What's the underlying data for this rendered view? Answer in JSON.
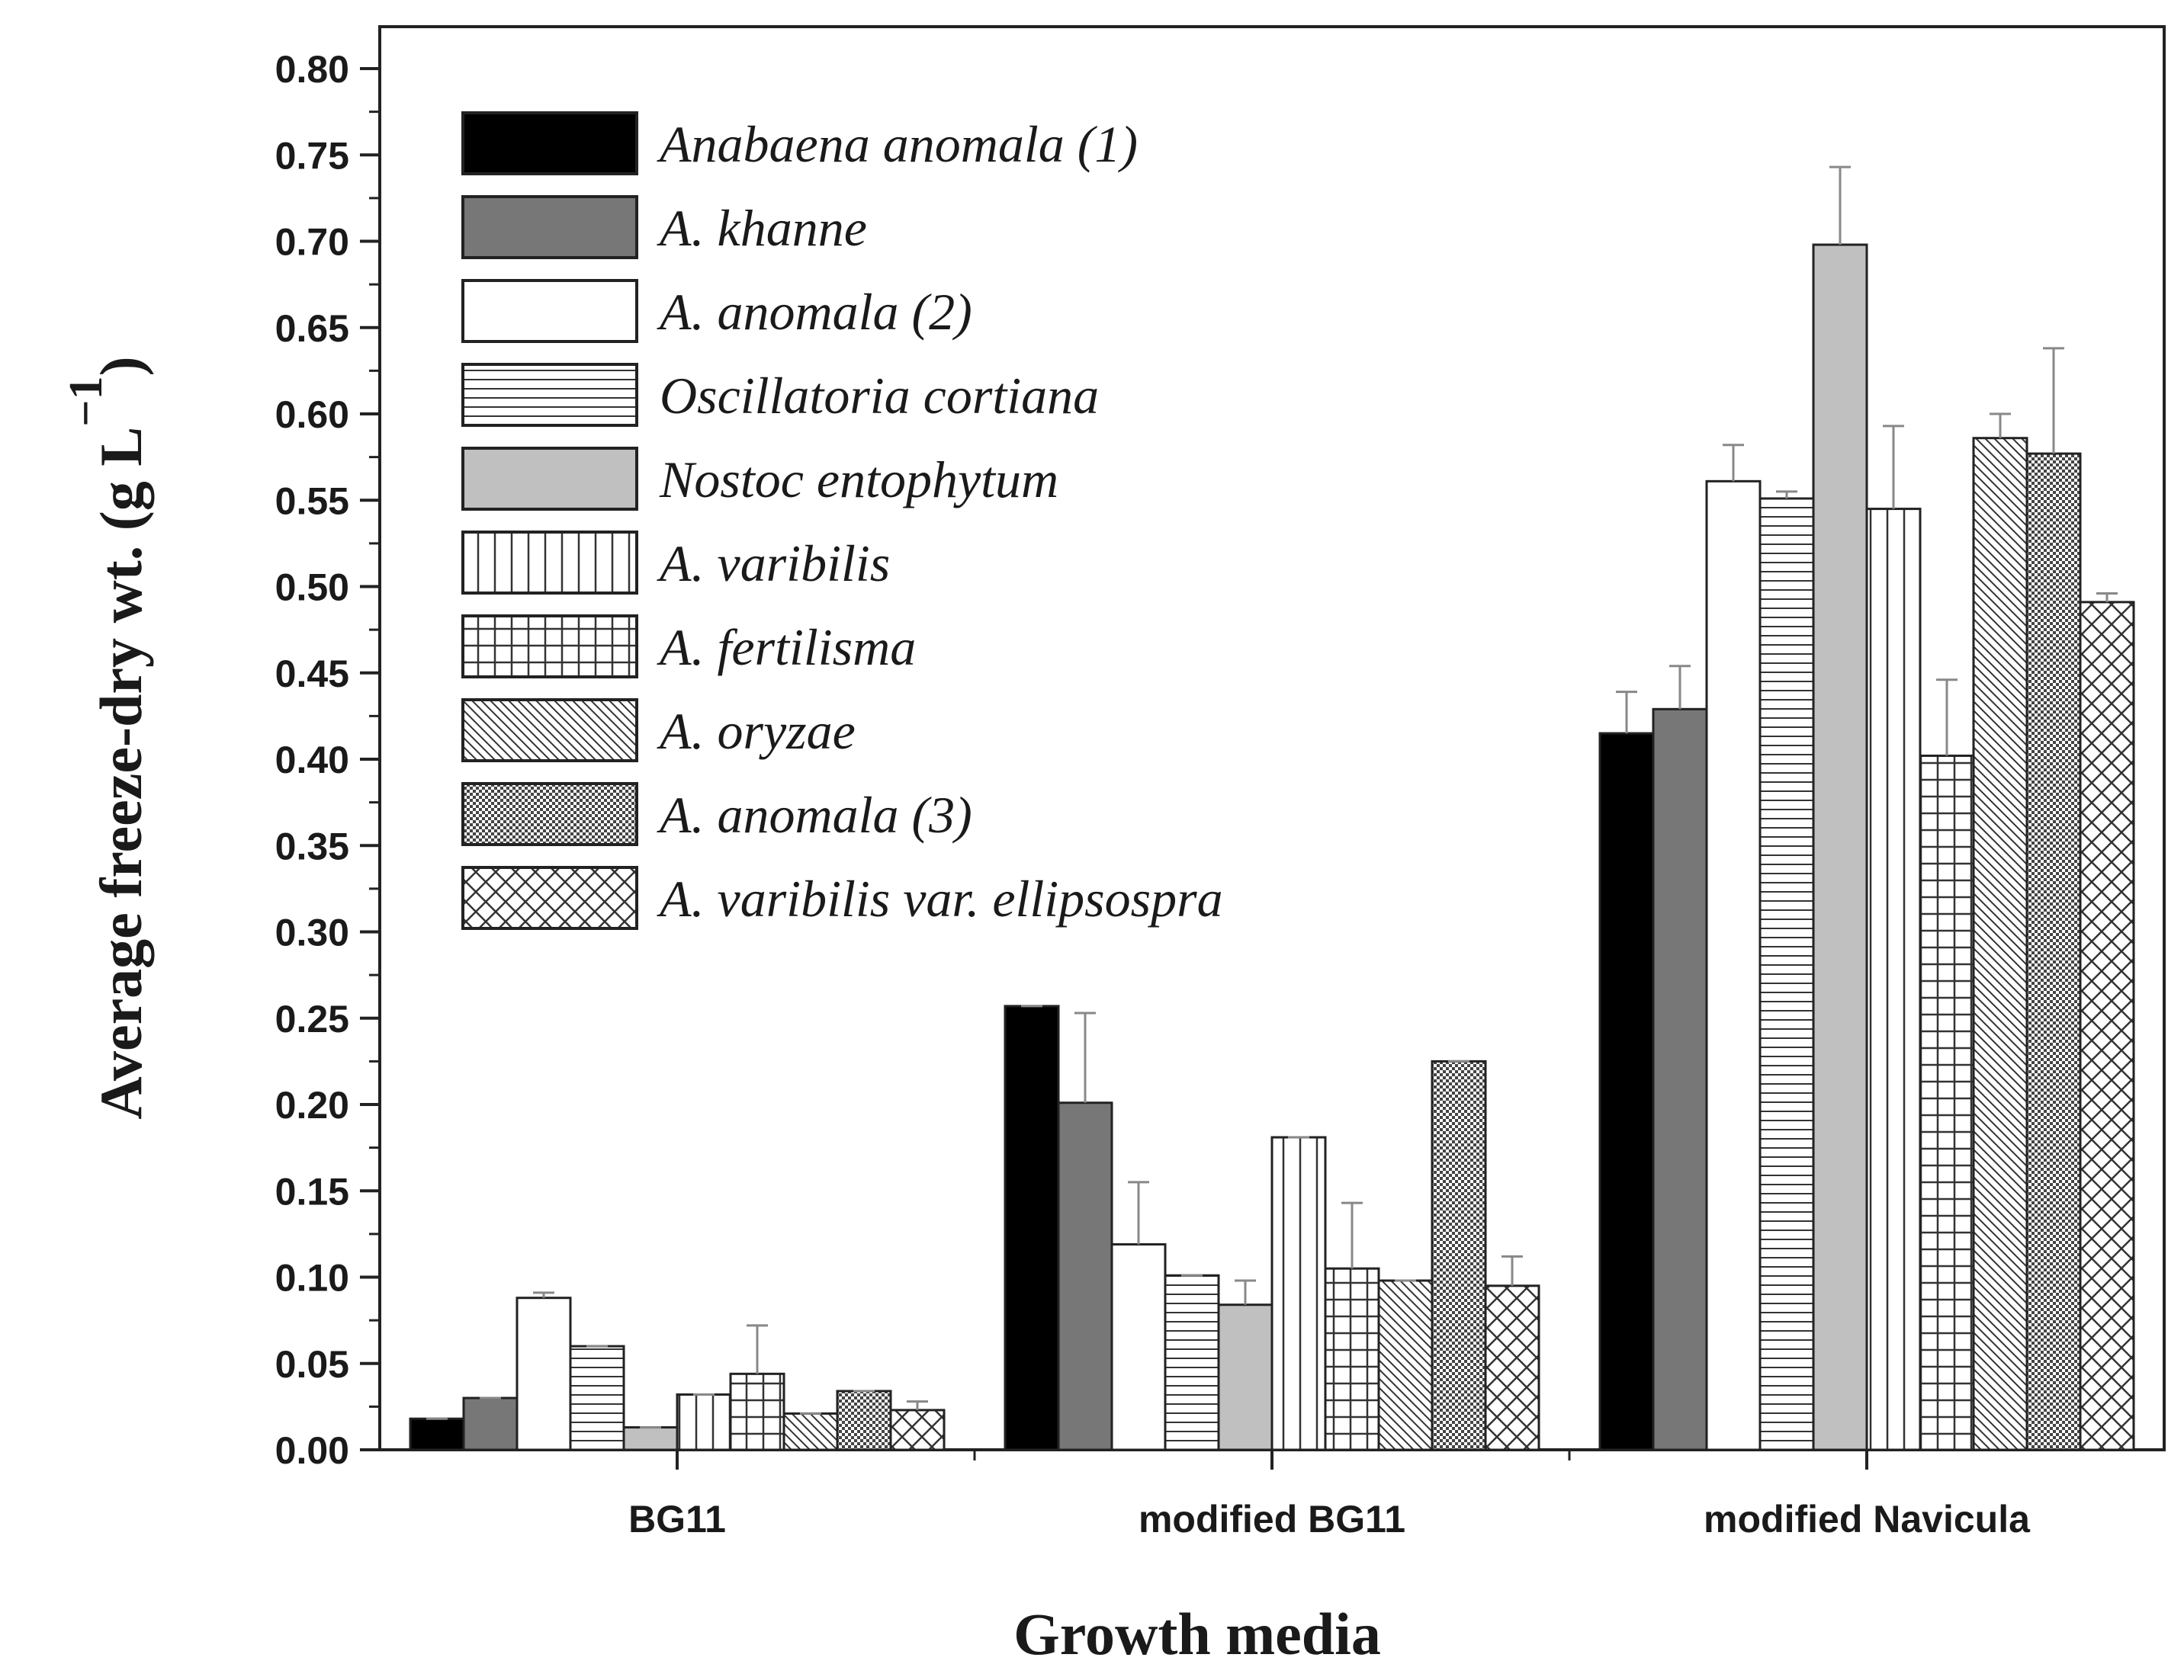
{
  "chart_data": {
    "type": "bar",
    "title": "",
    "xlabel": "Growth media",
    "ylabel": "Average freeze-dry wt. (g L",
    "ylabel_superscript": "−1",
    "ylabel_close": ")",
    "ylim": [
      0,
      0.8
    ],
    "yticks": [
      "0.00",
      "0.05",
      "0.10",
      "0.15",
      "0.20",
      "0.25",
      "0.30",
      "0.35",
      "0.40",
      "0.45",
      "0.50",
      "0.55",
      "0.60",
      "0.65",
      "0.70",
      "0.75",
      "0.80"
    ],
    "grid": false,
    "legend_position": "top-left",
    "categories": [
      "BG11",
      "modified BG11",
      "modified Navicula"
    ],
    "series": [
      {
        "name": "Anabaena anomala (1)",
        "pattern": "solid-black",
        "values": [
          0.018,
          0.257,
          0.415
        ],
        "errors": [
          0.0,
          0.0,
          0.024
        ]
      },
      {
        "name": "A. khanne",
        "pattern": "solid-darkgray",
        "values": [
          0.03,
          0.201,
          0.429
        ],
        "errors": [
          0.0,
          0.052,
          0.025
        ]
      },
      {
        "name": "A. anomala (2)",
        "pattern": "solid-white",
        "values": [
          0.088,
          0.119,
          0.561
        ],
        "errors": [
          0.003,
          0.036,
          0.021
        ]
      },
      {
        "name": "Oscillatoria cortiana",
        "pattern": "horizontal-lines",
        "values": [
          0.06,
          0.101,
          0.551
        ],
        "errors": [
          0.0,
          0.0,
          0.004
        ]
      },
      {
        "name": "Nostoc entophytum",
        "pattern": "solid-lightgray",
        "values": [
          0.013,
          0.084,
          0.698
        ],
        "errors": [
          0.0,
          0.014,
          0.045
        ]
      },
      {
        "name": "A. varibilis",
        "pattern": "vertical-lines",
        "values": [
          0.032,
          0.181,
          0.545
        ],
        "errors": [
          0.0,
          0.0,
          0.048
        ]
      },
      {
        "name": "A. fertilisma",
        "pattern": "grid",
        "values": [
          0.044,
          0.105,
          0.402
        ],
        "errors": [
          0.028,
          0.038,
          0.044
        ]
      },
      {
        "name": "A. oryzae",
        "pattern": "diagonal-lines",
        "values": [
          0.021,
          0.098,
          0.586
        ],
        "errors": [
          0.0,
          0.0,
          0.014
        ]
      },
      {
        "name": "A. anomala (3)",
        "pattern": "dense-checker",
        "values": [
          0.034,
          0.225,
          0.577
        ],
        "errors": [
          0.0,
          0.0,
          0.061
        ]
      },
      {
        "name": "A. varibilis var. ellipsospra",
        "pattern": "crosshatch",
        "values": [
          0.023,
          0.095,
          0.491
        ],
        "errors": [
          0.005,
          0.017,
          0.005
        ]
      }
    ]
  }
}
